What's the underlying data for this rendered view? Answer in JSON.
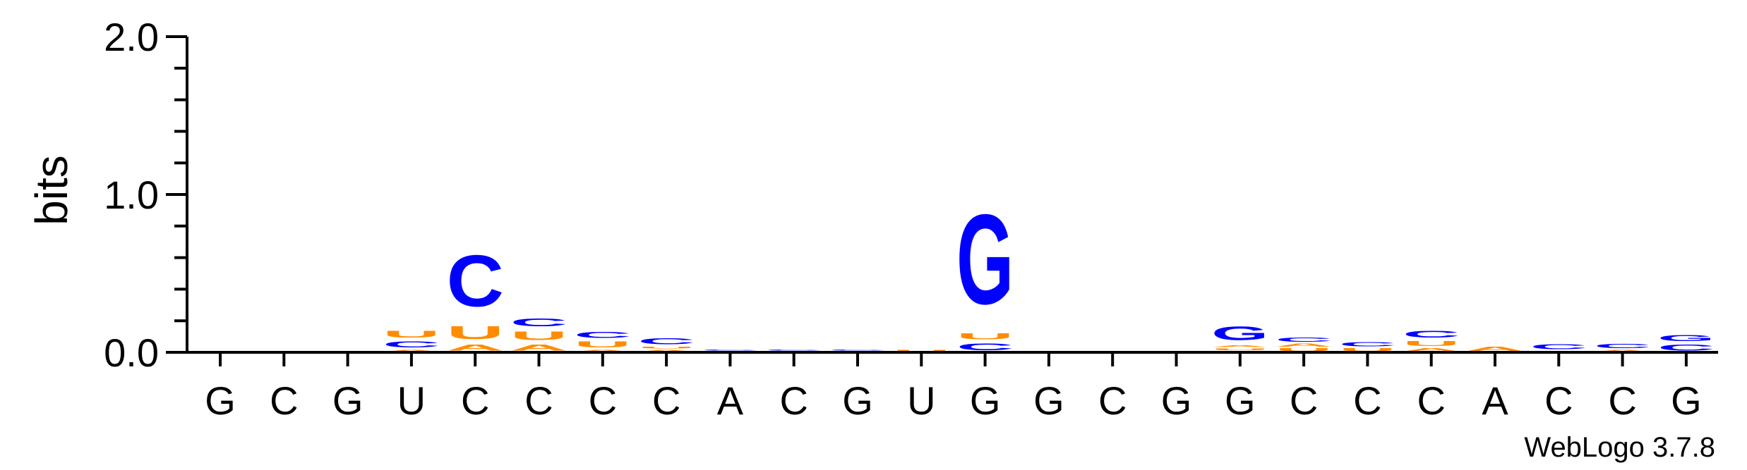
{
  "chart_data": {
    "type": "sequence-logo",
    "ylabel": "bits",
    "ylim": [
      0,
      2.0
    ],
    "y_ticks": [
      {
        "value": 0.0,
        "label": "0.0"
      },
      {
        "value": 1.0,
        "label": "1.0"
      },
      {
        "value": 2.0,
        "label": "2.0"
      }
    ],
    "y_minor_step": 0.2,
    "colors": {
      "C": "#0000ff",
      "G": "#0000ff",
      "U": "#ff8c00",
      "A": "#ff8c00"
    },
    "credit": "WebLogo 3.7.8",
    "positions": [
      {
        "label": "G",
        "stack": []
      },
      {
        "label": "C",
        "stack": [
          {
            "letter": "C",
            "height": 0.01
          }
        ]
      },
      {
        "label": "G",
        "stack": []
      },
      {
        "label": "U",
        "stack": [
          {
            "letter": "A",
            "height": 0.02
          },
          {
            "letter": "C",
            "height": 0.06
          },
          {
            "letter": "U",
            "height": 0.07
          }
        ]
      },
      {
        "label": "C",
        "stack": [
          {
            "letter": "A",
            "height": 0.06
          },
          {
            "letter": "U",
            "height": 0.13
          },
          {
            "letter": "C",
            "height": 0.52
          }
        ]
      },
      {
        "label": "C",
        "stack": [
          {
            "letter": "A",
            "height": 0.06
          },
          {
            "letter": "U",
            "height": 0.09
          },
          {
            "letter": "C",
            "height": 0.08
          }
        ]
      },
      {
        "label": "C",
        "stack": [
          {
            "letter": "A",
            "height": 0.02
          },
          {
            "letter": "U",
            "height": 0.06
          },
          {
            "letter": "C",
            "height": 0.06
          }
        ]
      },
      {
        "label": "C",
        "stack": [
          {
            "letter": "A",
            "height": 0.02
          },
          {
            "letter": "U",
            "height": 0.02
          },
          {
            "letter": "C",
            "height": 0.06
          }
        ]
      },
      {
        "label": "A",
        "stack": [
          {
            "letter": "A",
            "height": 0.01
          },
          {
            "letter": "C",
            "height": 0.01
          }
        ]
      },
      {
        "label": "C",
        "stack": [
          {
            "letter": "A",
            "height": 0.01
          },
          {
            "letter": "C",
            "height": 0.01
          }
        ]
      },
      {
        "label": "G",
        "stack": [
          {
            "letter": "U",
            "height": 0.01
          },
          {
            "letter": "C",
            "height": 0.01
          }
        ]
      },
      {
        "label": "U",
        "stack": [
          {
            "letter": "U",
            "height": 0.02
          }
        ]
      },
      {
        "label": "G",
        "stack": [
          {
            "letter": "C",
            "height": 0.07
          },
          {
            "letter": "U",
            "height": 0.06
          },
          {
            "letter": "G",
            "height": 0.91
          }
        ]
      },
      {
        "label": "G",
        "stack": []
      },
      {
        "label": "C",
        "stack": []
      },
      {
        "label": "G",
        "stack": []
      },
      {
        "label": "G",
        "stack": [
          {
            "letter": "C",
            "height": 0.01
          },
          {
            "letter": "U",
            "height": 0.02
          },
          {
            "letter": "A",
            "height": 0.02
          },
          {
            "letter": "G",
            "height": 0.14
          }
        ]
      },
      {
        "label": "C",
        "stack": [
          {
            "letter": "U",
            "height": 0.03
          },
          {
            "letter": "A",
            "height": 0.03
          },
          {
            "letter": "C",
            "height": 0.04
          }
        ]
      },
      {
        "label": "C",
        "stack": [
          {
            "letter": "U",
            "height": 0.03
          },
          {
            "letter": "C",
            "height": 0.04
          }
        ]
      },
      {
        "label": "C",
        "stack": [
          {
            "letter": "A",
            "height": 0.03
          },
          {
            "letter": "U",
            "height": 0.05
          },
          {
            "letter": "C",
            "height": 0.07
          }
        ]
      },
      {
        "label": "A",
        "stack": [
          {
            "letter": "A",
            "height": 0.04
          }
        ]
      },
      {
        "label": "C",
        "stack": [
          {
            "letter": "A",
            "height": 0.01
          },
          {
            "letter": "C",
            "height": 0.05
          }
        ]
      },
      {
        "label": "C",
        "stack": [
          {
            "letter": "A",
            "height": 0.02
          },
          {
            "letter": "C",
            "height": 0.04
          }
        ]
      },
      {
        "label": "G",
        "stack": [
          {
            "letter": "C",
            "height": 0.06
          },
          {
            "letter": "G",
            "height": 0.06
          }
        ]
      }
    ]
  }
}
